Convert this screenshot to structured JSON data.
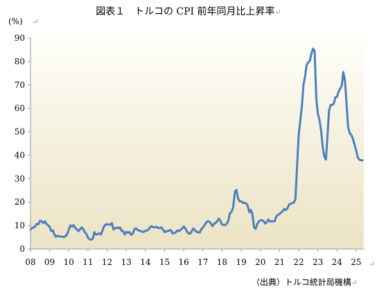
{
  "title": "図表１　トルコの CPI 前年同月比上昇率",
  "ylabel": "(%)",
  "source": "（出典）トルコ統計局機構",
  "return_mark": "↵",
  "colors": {
    "line": "#4a7fbe",
    "bg_top": "#fefef9",
    "bg_bottom": "#ece3c4",
    "axis": "#9a9a9a"
  },
  "chart_data": {
    "type": "line",
    "title": "図表１　トルコの CPI 前年同月比上昇率",
    "ylabel": "(%)",
    "xlabel": "",
    "ylim": [
      0,
      90
    ],
    "yticks": [
      0,
      10,
      20,
      30,
      40,
      50,
      60,
      70,
      80,
      90
    ],
    "xlim": [
      2008.0,
      2025.4
    ],
    "xticks": [
      {
        "label": "08",
        "x": 2008.0
      },
      {
        "label": "09",
        "x": 2009.0
      },
      {
        "label": "10",
        "x": 2010.0
      },
      {
        "label": "11",
        "x": 2011.0
      },
      {
        "label": "12",
        "x": 2012.0
      },
      {
        "label": "13",
        "x": 2013.0
      },
      {
        "label": "14",
        "x": 2014.0
      },
      {
        "label": "15",
        "x": 2015.0
      },
      {
        "label": "16",
        "x": 2016.0
      },
      {
        "label": "17",
        "x": 2017.0
      },
      {
        "label": "18",
        "x": 2018.0
      },
      {
        "label": "19",
        "x": 2019.0
      },
      {
        "label": "20",
        "x": 2020.0
      },
      {
        "label": "21",
        "x": 2021.0
      },
      {
        "label": "22",
        "x": 2022.0
      },
      {
        "label": "23",
        "x": 2023.0
      },
      {
        "label": "24",
        "x": 2024.0
      },
      {
        "label": "25",
        "x": 2025.0
      }
    ],
    "grid": false,
    "legend": "none",
    "series": [
      {
        "x": [
          2008.0,
          2008.08,
          2008.17,
          2008.25,
          2008.33,
          2008.42,
          2008.5,
          2008.58,
          2008.67,
          2008.75,
          2008.83,
          2008.92,
          2009.0,
          2009.08,
          2009.17,
          2009.25,
          2009.33,
          2009.42,
          2009.5,
          2009.58,
          2009.67,
          2009.75,
          2009.83,
          2009.92,
          2010.0,
          2010.08,
          2010.17,
          2010.25,
          2010.33,
          2010.42,
          2010.5,
          2010.58,
          2010.67,
          2010.75,
          2010.83,
          2010.92,
          2011.0,
          2011.08,
          2011.17,
          2011.25,
          2011.33,
          2011.42,
          2011.5,
          2011.58,
          2011.67,
          2011.75,
          2011.83,
          2011.92,
          2012.0,
          2012.08,
          2012.17,
          2012.25,
          2012.33,
          2012.42,
          2012.5,
          2012.58,
          2012.67,
          2012.75,
          2012.83,
          2012.92,
          2013.0,
          2013.08,
          2013.17,
          2013.25,
          2013.33,
          2013.42,
          2013.5,
          2013.58,
          2013.67,
          2013.75,
          2013.83,
          2013.92,
          2014.0,
          2014.08,
          2014.17,
          2014.25,
          2014.33,
          2014.42,
          2014.5,
          2014.58,
          2014.67,
          2014.75,
          2014.83,
          2014.92,
          2015.0,
          2015.08,
          2015.17,
          2015.25,
          2015.33,
          2015.42,
          2015.5,
          2015.58,
          2015.67,
          2015.75,
          2015.83,
          2015.92,
          2016.0,
          2016.08,
          2016.17,
          2016.25,
          2016.33,
          2016.42,
          2016.5,
          2016.58,
          2016.67,
          2016.75,
          2016.83,
          2016.92,
          2017.0,
          2017.08,
          2017.17,
          2017.25,
          2017.33,
          2017.42,
          2017.5,
          2017.58,
          2017.67,
          2017.75,
          2017.83,
          2017.92,
          2018.0,
          2018.08,
          2018.17,
          2018.25,
          2018.33,
          2018.42,
          2018.5,
          2018.58,
          2018.67,
          2018.75,
          2018.83,
          2018.92,
          2019.0,
          2019.08,
          2019.17,
          2019.25,
          2019.33,
          2019.42,
          2019.5,
          2019.58,
          2019.67,
          2019.75,
          2019.83,
          2019.92,
          2020.0,
          2020.08,
          2020.17,
          2020.25,
          2020.33,
          2020.42,
          2020.5,
          2020.58,
          2020.67,
          2020.75,
          2020.83,
          2020.92,
          2021.0,
          2021.08,
          2021.17,
          2021.25,
          2021.33,
          2021.42,
          2021.5,
          2021.58,
          2021.67,
          2021.75,
          2021.83,
          2021.92,
          2022.0,
          2022.08,
          2022.17,
          2022.25,
          2022.33,
          2022.42,
          2022.5,
          2022.58,
          2022.67,
          2022.75,
          2022.83,
          2022.92,
          2023.0,
          2023.08,
          2023.17,
          2023.25,
          2023.33,
          2023.42,
          2023.5,
          2023.58,
          2023.67,
          2023.75,
          2023.83,
          2023.92,
          2024.0,
          2024.08,
          2024.17,
          2024.25,
          2024.33,
          2024.42,
          2024.5,
          2024.58,
          2024.67,
          2024.75,
          2024.83,
          2024.92,
          2025.0,
          2025.08,
          2025.17,
          2025.25,
          2025.33
        ],
        "values": [
          8.2,
          9.1,
          9.2,
          9.7,
          10.7,
          10.6,
          12.1,
          11.8,
          11.1,
          11.9,
          10.8,
          10.1,
          9.5,
          7.7,
          7.9,
          6.1,
          5.2,
          5.7,
          5.4,
          5.3,
          5.3,
          5.1,
          5.5,
          6.5,
          8.2,
          10.1,
          9.6,
          10.2,
          9.1,
          8.4,
          7.6,
          8.3,
          9.2,
          8.6,
          7.3,
          6.4,
          4.9,
          4.2,
          4.0,
          4.3,
          7.2,
          6.2,
          6.3,
          6.7,
          6.2,
          7.7,
          9.5,
          10.5,
          10.6,
          10.4,
          10.4,
          11.1,
          8.3,
          8.9,
          9.1,
          8.9,
          9.2,
          7.8,
          7.8,
          6.2,
          7.3,
          7.0,
          7.3,
          6.1,
          6.5,
          8.3,
          8.9,
          8.2,
          7.9,
          7.7,
          7.3,
          7.4,
          7.8,
          7.9,
          8.4,
          9.4,
          9.7,
          9.2,
          9.3,
          9.5,
          8.9,
          9.0,
          9.2,
          8.2,
          7.2,
          7.6,
          7.6,
          8.0,
          8.1,
          6.6,
          6.8,
          7.1,
          8.0,
          7.6,
          8.1,
          8.8,
          9.6,
          8.8,
          7.5,
          6.6,
          6.6,
          7.6,
          8.8,
          8.1,
          7.3,
          7.2,
          7.0,
          8.5,
          9.2,
          10.1,
          11.3,
          11.9,
          11.7,
          10.9,
          9.8,
          10.7,
          11.2,
          11.9,
          13.0,
          11.9,
          10.4,
          10.3,
          10.2,
          10.9,
          12.2,
          15.4,
          15.9,
          17.9,
          24.5,
          25.2,
          21.6,
          20.3,
          20.4,
          19.7,
          19.7,
          19.5,
          18.7,
          15.7,
          16.7,
          15.0,
          9.3,
          8.6,
          10.6,
          11.8,
          12.2,
          12.4,
          11.9,
          10.9,
          11.4,
          12.6,
          11.8,
          11.8,
          11.8,
          11.9,
          14.0,
          14.6,
          15.0,
          15.6,
          16.2,
          17.1,
          16.6,
          17.5,
          19.0,
          19.3,
          19.6,
          19.9,
          21.3,
          36.1,
          48.7,
          54.4,
          61.1,
          70.0,
          73.5,
          78.6,
          79.6,
          80.2,
          83.5,
          85.5,
          84.4,
          64.3,
          57.7,
          55.2,
          50.5,
          43.7,
          39.6,
          38.2,
          47.8,
          58.9,
          61.5,
          61.4,
          62.0,
          64.8,
          64.9,
          67.1,
          68.5,
          69.8,
          75.5,
          71.6,
          61.8,
          52.0,
          49.4,
          48.6,
          47.1,
          44.4,
          42.1,
          39.1,
          38.1,
          37.9,
          37.9
        ]
      }
    ]
  }
}
